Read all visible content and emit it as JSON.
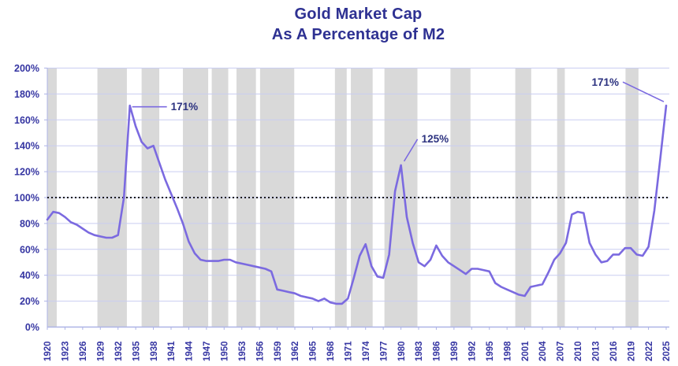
{
  "title": {
    "line1": "Gold Market Cap",
    "line2": "As A Percentage of M2"
  },
  "chart_data": {
    "type": "line",
    "title": "Gold Market Cap As A Percentage of M2",
    "xlabel": "",
    "ylabel": "",
    "ylim": [
      0,
      200
    ],
    "y_tick_step_percent": 20,
    "x_tick_interval_years": 3,
    "grid": true,
    "legend": "none",
    "y_tick_labels": [
      "0%",
      "20%",
      "40%",
      "60%",
      "80%",
      "100%",
      "120%",
      "140%",
      "160%",
      "180%",
      "200%"
    ],
    "x_tick_labels": [
      "1920",
      "1923",
      "1926",
      "1929",
      "1932",
      "1935",
      "1938",
      "1941",
      "1944",
      "1947",
      "1950",
      "1953",
      "1956",
      "1959",
      "1962",
      "1965",
      "1968",
      "1971",
      "1974",
      "1977",
      "1980",
      "1983",
      "1986",
      "1989",
      "1992",
      "1995",
      "1998",
      "2001",
      "2004",
      "2007",
      "2010",
      "2013",
      "2016",
      "2019",
      "2022",
      "2025"
    ],
    "years": [
      1920,
      1921,
      1922,
      1923,
      1924,
      1925,
      1926,
      1927,
      1928,
      1929,
      1930,
      1931,
      1932,
      1933,
      1934,
      1935,
      1936,
      1937,
      1938,
      1939,
      1940,
      1941,
      1942,
      1943,
      1944,
      1945,
      1946,
      1947,
      1948,
      1949,
      1950,
      1951,
      1952,
      1953,
      1954,
      1955,
      1956,
      1957,
      1958,
      1959,
      1960,
      1961,
      1962,
      1963,
      1964,
      1965,
      1966,
      1967,
      1968,
      1969,
      1970,
      1971,
      1972,
      1973,
      1974,
      1975,
      1976,
      1977,
      1978,
      1979,
      1980,
      1981,
      1982,
      1983,
      1984,
      1985,
      1986,
      1987,
      1988,
      1989,
      1990,
      1991,
      1992,
      1993,
      1994,
      1995,
      1996,
      1997,
      1998,
      1999,
      2000,
      2001,
      2002,
      2003,
      2004,
      2005,
      2006,
      2007,
      2008,
      2009,
      2010,
      2011,
      2012,
      2013,
      2014,
      2015,
      2016,
      2017,
      2018,
      2019,
      2020,
      2021,
      2022,
      2023,
      2024,
      2025
    ],
    "values": [
      83,
      89,
      88,
      85,
      81,
      79,
      76,
      73,
      71,
      70,
      69,
      69,
      71,
      100,
      171,
      155,
      143,
      138,
      140,
      127,
      114,
      103,
      92,
      80,
      66,
      57,
      52,
      51,
      51,
      51,
      52,
      52,
      50,
      49,
      48,
      47,
      46,
      45,
      43,
      29,
      28,
      27,
      26,
      24,
      23,
      22,
      20,
      22,
      19,
      18,
      18,
      22,
      38,
      55,
      64,
      47,
      39,
      38,
      56,
      105,
      125,
      85,
      65,
      50,
      47,
      52,
      63,
      55,
      50,
      47,
      44,
      41,
      45,
      45,
      44,
      43,
      34,
      31,
      29,
      27,
      25,
      24,
      31,
      32,
      33,
      42,
      52,
      57,
      65,
      87,
      89,
      88,
      65,
      56,
      50,
      51,
      56,
      56,
      61,
      61,
      56,
      55,
      62,
      90,
      130,
      171
    ],
    "reference_line": {
      "value": 100,
      "style": "dotted"
    },
    "annotations": [
      {
        "label": "171%",
        "year": 1934,
        "value": 171
      },
      {
        "label": "125%",
        "year": 1980,
        "value": 125
      },
      {
        "label": "171%",
        "year": 2025,
        "value": 171
      }
    ],
    "shaded_periods": [
      [
        1920,
        1921.6
      ],
      [
        1928.5,
        1933.5
      ],
      [
        1936,
        1939
      ],
      [
        1943,
        1947.3
      ],
      [
        1947.9,
        1950.7
      ],
      [
        1952.1,
        1955.4
      ],
      [
        1956.1,
        1961.9
      ],
      [
        1968.8,
        1970.8
      ],
      [
        1971.5,
        1975.2
      ],
      [
        1977.2,
        1982.8
      ],
      [
        1988.4,
        1991.8
      ],
      [
        1999.4,
        2002.1
      ],
      [
        2006.5,
        2007.8
      ],
      [
        2018.1,
        2020.3
      ]
    ],
    "colors": {
      "line": "#7b6ae0",
      "grid": "#c9cdf1",
      "band": "#d9d9d9",
      "axis": "#adb3e6",
      "reference": "#1a1a1a",
      "tick_text": "#3535a2",
      "title_text": "#2e3192",
      "annotation_text": "#2d3380"
    }
  }
}
